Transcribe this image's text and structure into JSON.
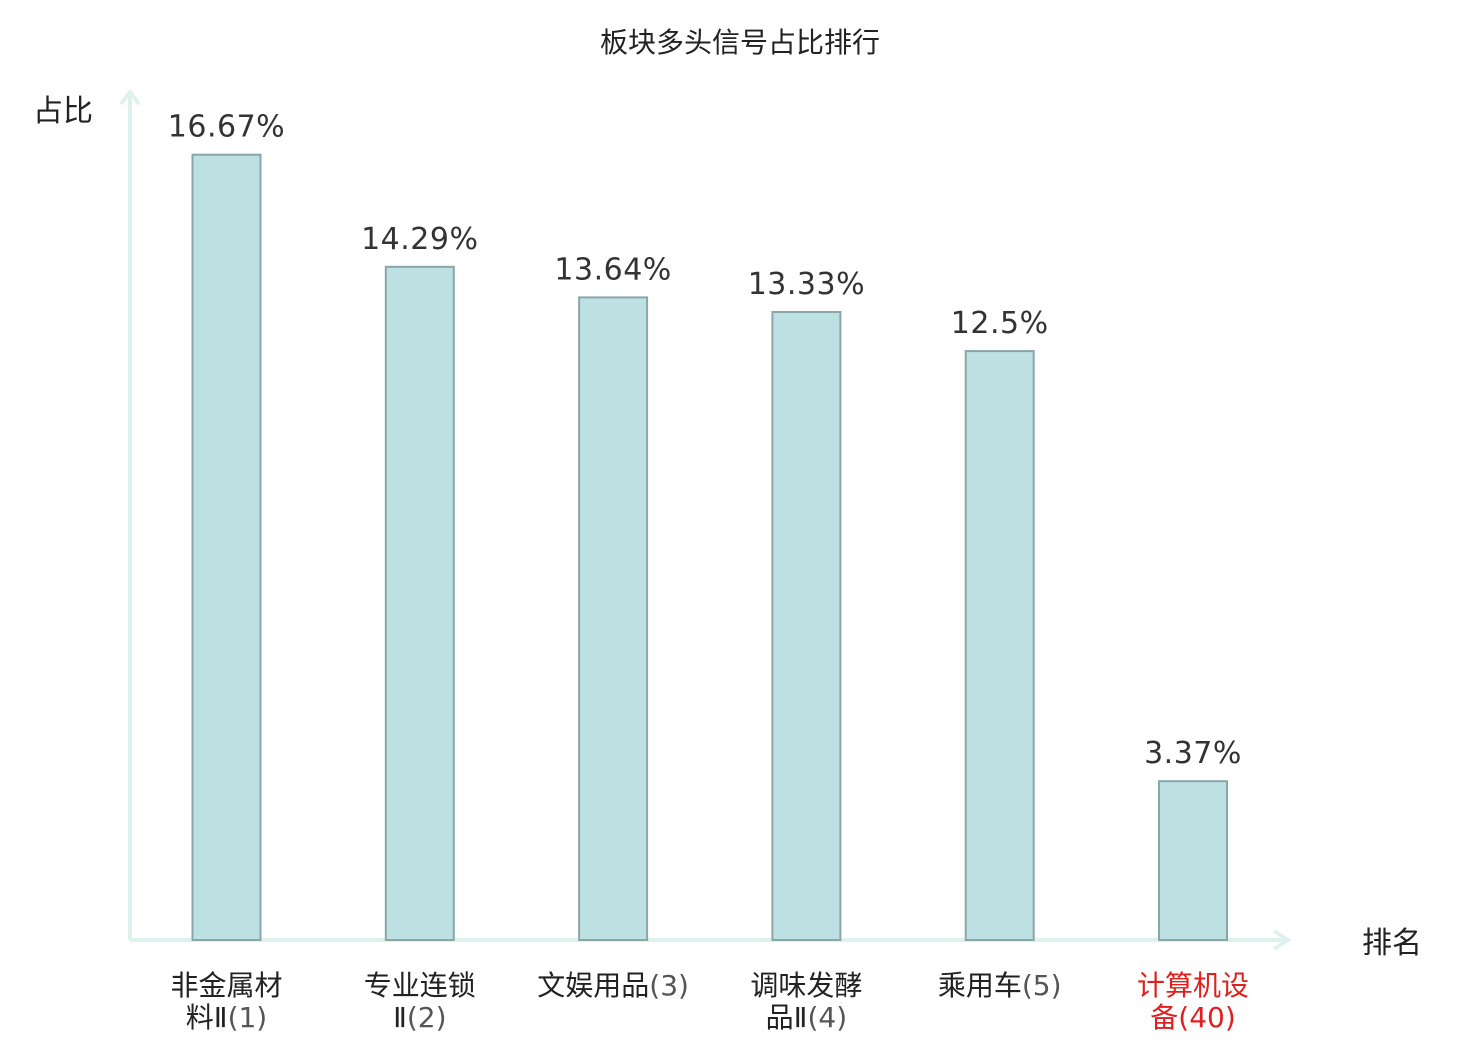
{
  "chart_data": {
    "type": "bar",
    "title": "板块多头信号占比排行",
    "ylabel": "占比",
    "xlabel": "排名",
    "categories": [
      {
        "name_lines": [
          "非金属材",
          "料Ⅱ"
        ],
        "rank": "(1)",
        "highlight": false
      },
      {
        "name_lines": [
          "专业连锁",
          "Ⅱ"
        ],
        "rank": "(2)",
        "highlight": false
      },
      {
        "name_lines": [
          "文娱用品"
        ],
        "rank": "(3)",
        "highlight": false
      },
      {
        "name_lines": [
          "调味发酵",
          "品Ⅱ"
        ],
        "rank": "(4)",
        "highlight": false
      },
      {
        "name_lines": [
          "乘用车"
        ],
        "rank": "(5)",
        "highlight": false
      },
      {
        "name_lines": [
          "计算机设",
          "备"
        ],
        "rank": "(40)",
        "highlight": true
      }
    ],
    "values": [
      16.67,
      14.29,
      13.64,
      13.33,
      12.5,
      3.37
    ],
    "value_labels": [
      "16.67%",
      "14.29%",
      "13.64%",
      "13.33%",
      "12.5%",
      "3.37%"
    ],
    "ylim": [
      0,
      18
    ],
    "grid": false,
    "colors": {
      "bar_fill": "#bde0e3",
      "bar_stroke": "#8aa6a8",
      "axis": "#dff1ef",
      "label_text": "#222222",
      "rank_text": "#555555",
      "highlight": "#e0201f"
    }
  }
}
